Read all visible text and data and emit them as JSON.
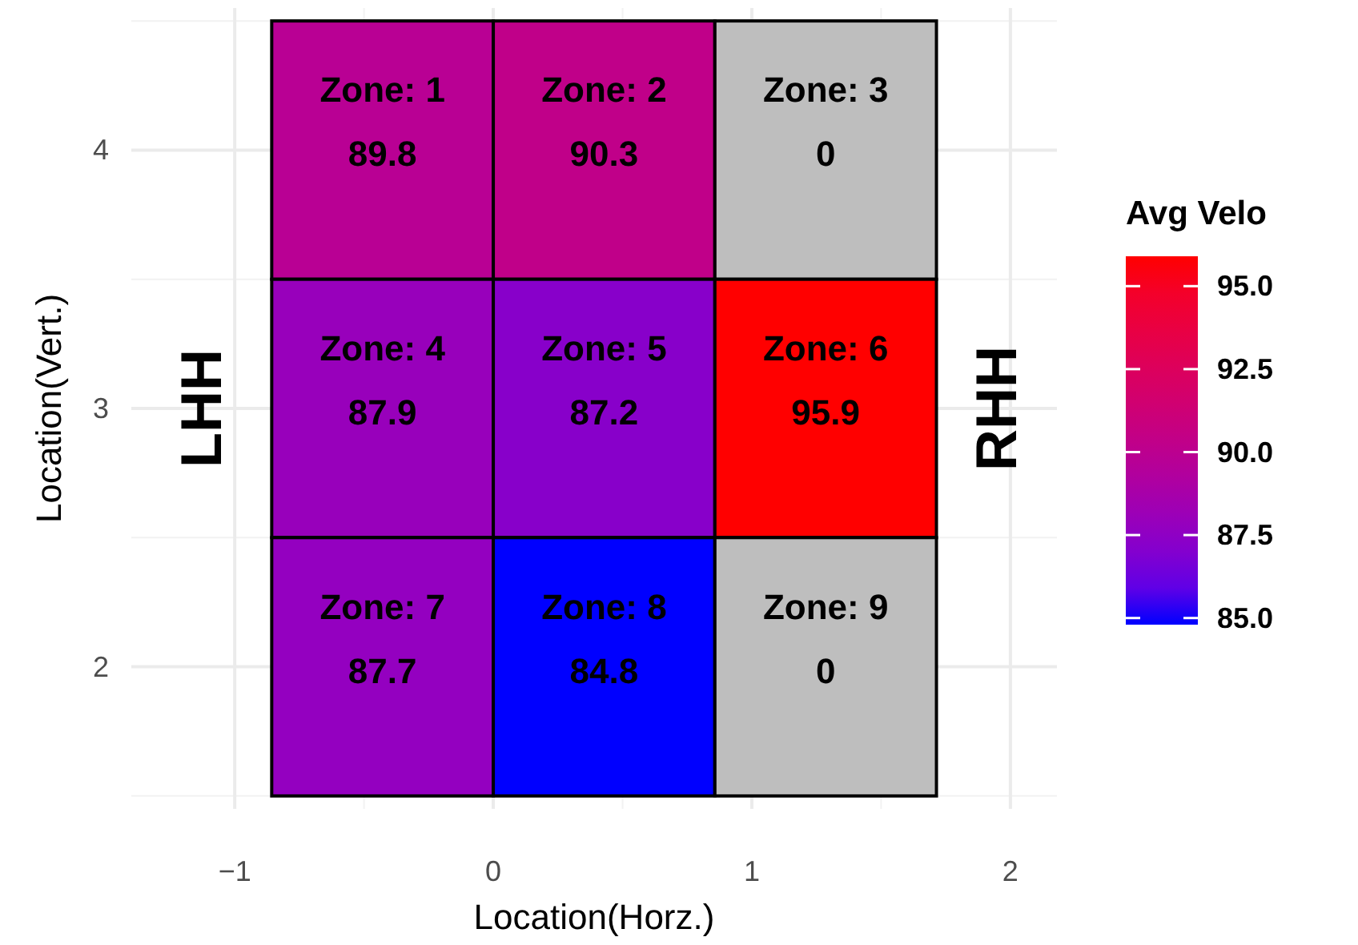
{
  "chart_data": {
    "type": "heatmap",
    "xlabel": "Location(Horz.)",
    "ylabel": "Location(Vert.)",
    "legend_title": "Avg Velo",
    "x": [
      -0.4285,
      0.4285,
      1.2855
    ],
    "xlim": [
      -1.4,
      2.18
    ],
    "xticks": [
      {
        "value": -1,
        "label": "−1"
      },
      0,
      1,
      2
    ],
    "ylim": [
      1.45,
      4.55
    ],
    "yticks": [
      2,
      3,
      4
    ],
    "cells": [
      [
        89.8,
        90.3,
        null
      ],
      [
        87.9,
        87.2,
        95.9
      ],
      [
        87.7,
        84.8,
        null
      ]
    ],
    "cell_labels": [
      [
        "Zone: 1\n89.8",
        "Zone: 2\n90.3",
        "Zone: 3\n0"
      ],
      [
        "Zone: 4\n87.9",
        "Zone: 5\n87.2",
        "Zone: 6\n95.9"
      ],
      [
        "Zone: 7\n87.7",
        "Zone: 8\n84.8",
        "Zone: 9\n0"
      ]
    ],
    "colors": [
      "#0000ff",
      "#ff0000"
    ],
    "color": "#bebebe",
    "clim": [
      84.8,
      95.9
    ],
    "cticks": [
      {
        "value": 85,
        "label": "85.0"
      },
      {
        "value": 87.5,
        "label": "87.5"
      },
      {
        "value": 90,
        "label": "90.0"
      },
      {
        "value": 92.5,
        "label": "92.5"
      },
      {
        "value": 95,
        "label": "95.0"
      }
    ],
    "annotations": [
      "LHH",
      "RHH"
    ],
    "grid": true
  }
}
